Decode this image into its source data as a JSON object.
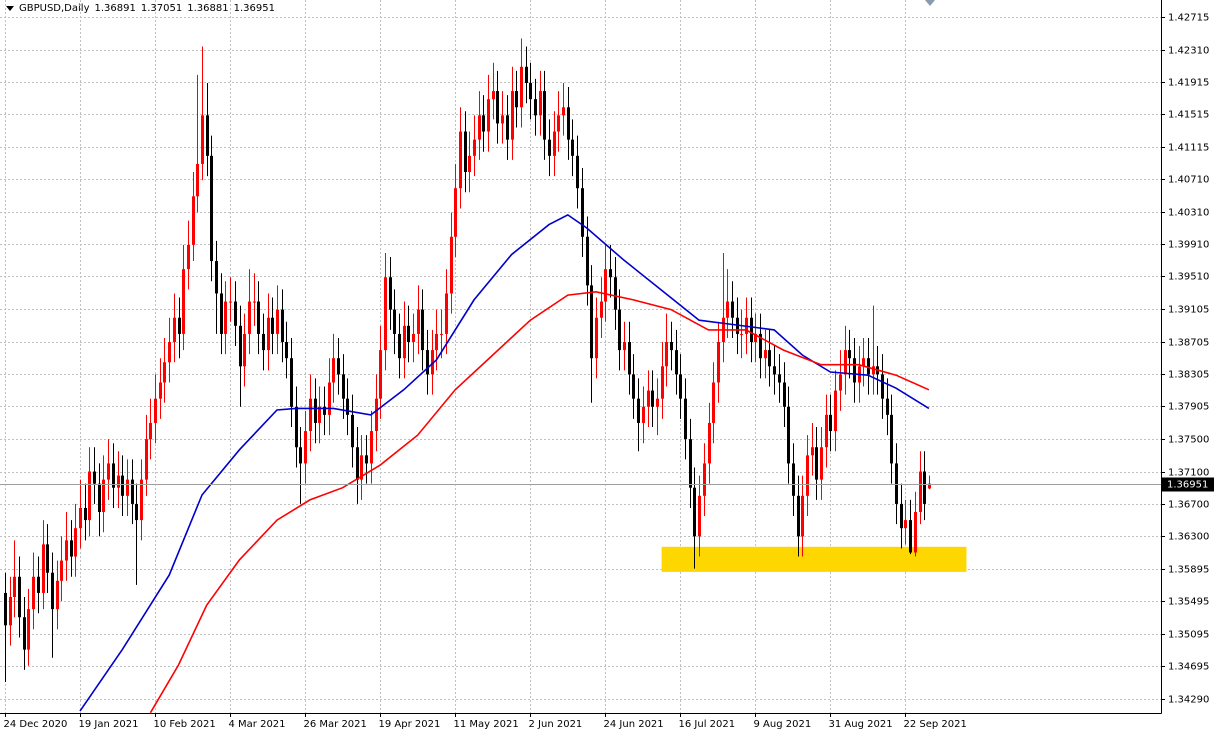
{
  "chart_data": {
    "type": "candlestick",
    "title": "GBPUSD,Daily",
    "up_color": "#ff0000",
    "down_color": "#000000",
    "grid": true,
    "ylim": [
      1.34117,
      1.42925
    ],
    "yticks": [
      {
        "value": 1.3429,
        "label": "1.34290"
      },
      1.34695,
      1.35095,
      1.35495,
      1.35895,
      {
        "value": 1.363,
        "label": "1.36300"
      },
      {
        "value": 1.367,
        "label": "1.36700"
      },
      {
        "value": 1.371,
        "label": "1.37100"
      },
      {
        "value": 1.375,
        "label": "1.37500"
      },
      1.37905,
      1.38305,
      1.38705,
      1.39105,
      {
        "value": 1.3951,
        "label": "1.39510"
      },
      {
        "value": 1.3991,
        "label": "1.39910"
      },
      {
        "value": 1.4031,
        "label": "1.40310"
      },
      {
        "value": 1.4071,
        "label": "1.40710"
      },
      1.41115,
      1.41515,
      1.41915,
      {
        "value": 1.4231,
        "label": "1.42310"
      },
      1.42715
    ],
    "categories": [
      "24 Dec 2020",
      null,
      null,
      null,
      null,
      null,
      null,
      null,
      null,
      null,
      null,
      null,
      null,
      null,
      null,
      null,
      "19 Jan 2021",
      null,
      null,
      null,
      null,
      null,
      null,
      null,
      null,
      null,
      null,
      null,
      null,
      null,
      null,
      null,
      "10 Feb 2021",
      null,
      null,
      null,
      null,
      null,
      null,
      null,
      null,
      null,
      null,
      null,
      null,
      null,
      null,
      null,
      "4 Mar 2021",
      null,
      null,
      null,
      null,
      null,
      null,
      null,
      null,
      null,
      null,
      null,
      null,
      null,
      null,
      null,
      "26 Mar 2021",
      null,
      null,
      null,
      null,
      null,
      null,
      null,
      null,
      null,
      null,
      null,
      null,
      null,
      null,
      null,
      "19 Apr 2021",
      null,
      null,
      null,
      null,
      null,
      null,
      null,
      null,
      null,
      null,
      null,
      null,
      null,
      null,
      null,
      "11 May 2021",
      null,
      null,
      null,
      null,
      null,
      null,
      null,
      null,
      null,
      null,
      null,
      null,
      null,
      null,
      null,
      "2 Jun 2021",
      null,
      null,
      null,
      null,
      null,
      null,
      null,
      null,
      null,
      null,
      null,
      null,
      null,
      null,
      null,
      "24 Jun 2021",
      null,
      null,
      null,
      null,
      null,
      null,
      null,
      null,
      null,
      null,
      null,
      null,
      null,
      null,
      null,
      "16 Jul 2021",
      null,
      null,
      null,
      null,
      null,
      null,
      null,
      null,
      null,
      null,
      null,
      null,
      null,
      null,
      null,
      "9 Aug 2021",
      null,
      null,
      null,
      null,
      null,
      null,
      null,
      null,
      null,
      null,
      null,
      null,
      null,
      null,
      null,
      "31 Aug 2021",
      null,
      null,
      null,
      null,
      null,
      null,
      null,
      null,
      null,
      null,
      null,
      null,
      null,
      null,
      null,
      "22 Sep 2021",
      null,
      null,
      null,
      null,
      null
    ],
    "open": [
      1.356,
      1.352,
      1.3555,
      1.358,
      1.353,
      1.349,
      1.354,
      1.358,
      1.356,
      1.362,
      1.3585,
      1.354,
      1.3575,
      1.36,
      1.3625,
      1.3605,
      1.364,
      1.3665,
      1.365,
      1.371,
      1.3695,
      1.366,
      1.37,
      1.372,
      1.369,
      1.3705,
      1.368,
      1.37,
      1.367,
      1.365,
      1.37,
      1.375,
      1.377,
      1.38,
      1.382,
      1.3845,
      1.387,
      1.39,
      1.388,
      1.396,
      1.399,
      1.405,
      1.409,
      1.415,
      1.41,
      1.397,
      1.393,
      1.388,
      1.392,
      1.392,
      1.389,
      1.384,
      1.388,
      1.392,
      1.392,
      1.388,
      1.386,
      1.39,
      1.388,
      1.391,
      1.387,
      1.385,
      1.379,
      1.374,
      1.372,
      1.376,
      1.38,
      1.377,
      1.379,
      1.378,
      1.382,
      1.385,
      1.383,
      1.38,
      1.378,
      1.374,
      1.37,
      1.373,
      1.372,
      1.376,
      1.38,
      1.386,
      1.395,
      1.391,
      1.388,
      1.385,
      1.389,
      1.387,
      1.388,
      1.391,
      1.386,
      1.383,
      1.386,
      1.388,
      1.388,
      1.393,
      1.4,
      1.406,
      1.413,
      1.408,
      1.41,
      1.412,
      1.415,
      1.413,
      1.417,
      1.418,
      1.414,
      1.415,
      1.412,
      1.418,
      1.416,
      1.421,
      1.419,
      1.417,
      1.415,
      1.418,
      1.412,
      1.41,
      1.413,
      1.415,
      1.416,
      1.412,
      1.41,
      1.406,
      1.4,
      1.394,
      1.385,
      1.39,
      1.392,
      1.396,
      1.395,
      1.391,
      1.386,
      1.387,
      1.383,
      1.38,
      1.377,
      1.379,
      1.381,
      1.379,
      1.38,
      1.384,
      1.387,
      1.386,
      1.383,
      1.38,
      1.375,
      1.369,
      1.363,
      1.368,
      1.372,
      1.377,
      1.382,
      1.387,
      1.39,
      1.392,
      1.39,
      1.388,
      1.388,
      1.39,
      1.387,
      1.388,
      1.385,
      1.386,
      1.384,
      1.383,
      1.382,
      1.379,
      1.372,
      1.368,
      1.363,
      1.368,
      1.373,
      1.374,
      1.37,
      1.374,
      1.378,
      1.376,
      1.381,
      1.383,
      1.386,
      1.385,
      1.382,
      1.384,
      1.385,
      1.383,
      1.384,
      1.383,
      1.38,
      1.378,
      1.372,
      1.367,
      1.364,
      1.365,
      1.361,
      1.366,
      1.371,
      1.36891
    ],
    "high": [
      1.3585,
      1.358,
      1.3625,
      1.3605,
      1.3555,
      1.3565,
      1.361,
      1.3605,
      1.365,
      1.3645,
      1.361,
      1.36,
      1.363,
      1.366,
      1.365,
      1.367,
      1.37,
      1.3695,
      1.374,
      1.374,
      1.372,
      1.373,
      1.375,
      1.3745,
      1.3735,
      1.373,
      1.3725,
      1.3725,
      1.3695,
      1.3725,
      1.378,
      1.38,
      1.383,
      1.385,
      1.3875,
      1.39,
      1.393,
      1.3925,
      1.399,
      1.402,
      1.408,
      1.42,
      1.4235,
      1.419,
      1.4125,
      1.3995,
      1.3955,
      1.3945,
      1.395,
      1.3945,
      1.3915,
      1.3905,
      1.396,
      1.3955,
      1.3945,
      1.3905,
      1.393,
      1.3925,
      1.394,
      1.3935,
      1.3895,
      1.3875,
      1.3815,
      1.3765,
      1.3785,
      1.383,
      1.3825,
      1.3815,
      1.3815,
      1.385,
      1.388,
      1.3875,
      1.3855,
      1.3825,
      1.3805,
      1.3765,
      1.3755,
      1.3755,
      1.3785,
      1.383,
      1.389,
      1.398,
      1.3975,
      1.3935,
      1.3905,
      1.392,
      1.3915,
      1.3905,
      1.394,
      1.3935,
      1.3885,
      1.3885,
      1.391,
      1.391,
      1.396,
      1.403,
      1.409,
      1.416,
      1.4155,
      1.413,
      1.415,
      1.418,
      1.4175,
      1.42,
      1.4215,
      1.4205,
      1.418,
      1.4175,
      1.421,
      1.4205,
      1.4245,
      1.4235,
      1.4215,
      1.4195,
      1.4205,
      1.4205,
      1.4145,
      1.4155,
      1.418,
      1.419,
      1.4185,
      1.4145,
      1.4125,
      1.4085,
      1.4025,
      1.3965,
      1.3925,
      1.395,
      1.399,
      1.399,
      1.3975,
      1.3935,
      1.3895,
      1.3895,
      1.3855,
      1.3825,
      1.3815,
      1.3835,
      1.3835,
      1.3825,
      1.387,
      1.3905,
      1.3895,
      1.3885,
      1.3855,
      1.3825,
      1.3775,
      1.3715,
      1.3705,
      1.3745,
      1.3795,
      1.3845,
      1.3895,
      1.398,
      1.396,
      1.3945,
      1.3925,
      1.391,
      1.3925,
      1.3925,
      1.3905,
      1.3905,
      1.3885,
      1.3885,
      1.3865,
      1.3855,
      1.3845,
      1.3815,
      1.3745,
      1.3705,
      1.3705,
      1.3755,
      1.377,
      1.3765,
      1.3765,
      1.3805,
      1.3805,
      1.3835,
      1.386,
      1.389,
      1.3885,
      1.3875,
      1.3865,
      1.3875,
      1.3875,
      1.3915,
      1.3865,
      1.3855,
      1.3825,
      1.3805,
      1.3745,
      1.3695,
      1.3675,
      1.3675,
      1.3685,
      1.3735,
      1.3735,
      1.37051
    ],
    "low": [
      1.345,
      1.3495,
      1.353,
      1.3505,
      1.3465,
      1.347,
      1.3515,
      1.3535,
      1.354,
      1.356,
      1.348,
      1.3515,
      1.355,
      1.3575,
      1.358,
      1.358,
      1.3615,
      1.3625,
      1.363,
      1.367,
      1.363,
      1.3635,
      1.3675,
      1.3665,
      1.3665,
      1.3655,
      1.3655,
      1.3645,
      1.357,
      1.3625,
      1.368,
      1.3725,
      1.3745,
      1.3775,
      1.3795,
      1.382,
      1.3845,
      1.385,
      1.386,
      1.3935,
      1.397,
      1.403,
      1.407,
      1.4075,
      1.3945,
      1.388,
      1.3855,
      1.3855,
      1.3895,
      1.3865,
      1.379,
      1.3815,
      1.3855,
      1.389,
      1.3855,
      1.3835,
      1.3835,
      1.3855,
      1.3855,
      1.3845,
      1.3825,
      1.3765,
      1.3715,
      1.367,
      1.3695,
      1.3735,
      1.3745,
      1.3745,
      1.3755,
      1.3755,
      1.3795,
      1.3805,
      1.3775,
      1.3755,
      1.3715,
      1.367,
      1.3675,
      1.3695,
      1.3695,
      1.3735,
      1.3775,
      1.3835,
      1.3885,
      1.3855,
      1.3825,
      1.3825,
      1.3845,
      1.3845,
      1.3855,
      1.3835,
      1.3805,
      1.3805,
      1.3835,
      1.385,
      1.3855,
      1.3905,
      1.3975,
      1.4035,
      1.4055,
      1.4055,
      1.4075,
      1.4095,
      1.4105,
      1.4105,
      1.4145,
      1.4115,
      1.4115,
      1.4095,
      1.4095,
      1.4135,
      1.4135,
      1.4165,
      1.4145,
      1.4125,
      1.4125,
      1.4095,
      1.4075,
      1.4075,
      1.4105,
      1.4125,
      1.4095,
      1.4075,
      1.4035,
      1.3975,
      1.3915,
      1.3795,
      1.3825,
      1.3875,
      1.3895,
      1.3925,
      1.3885,
      1.3835,
      1.3835,
      1.3805,
      1.3775,
      1.3735,
      1.3745,
      1.3765,
      1.3765,
      1.3755,
      1.3775,
      1.3815,
      1.3835,
      1.3805,
      1.3775,
      1.3725,
      1.3665,
      1.359,
      1.3605,
      1.3655,
      1.3695,
      1.3745,
      1.3795,
      1.3845,
      1.3875,
      1.3875,
      1.3855,
      1.385,
      1.3855,
      1.3845,
      1.3845,
      1.3825,
      1.3825,
      1.3815,
      1.3805,
      1.3795,
      1.3765,
      1.3695,
      1.3655,
      1.3605,
      1.3605,
      1.3655,
      1.3705,
      1.3675,
      1.3675,
      1.3715,
      1.3735,
      1.3735,
      1.3785,
      1.3805,
      1.3825,
      1.3795,
      1.3795,
      1.3815,
      1.3805,
      1.3805,
      1.3805,
      1.3775,
      1.3755,
      1.3695,
      1.3645,
      1.3615,
      1.362,
      1.3608,
      1.3605,
      1.3645,
      1.365,
      1.36881
    ],
    "close": [
      1.352,
      1.3555,
      1.358,
      1.353,
      1.349,
      1.354,
      1.358,
      1.356,
      1.362,
      1.3585,
      1.354,
      1.3575,
      1.36,
      1.3625,
      1.3605,
      1.364,
      1.3665,
      1.365,
      1.371,
      1.3695,
      1.366,
      1.37,
      1.372,
      1.369,
      1.3705,
      1.368,
      1.37,
      1.367,
      1.365,
      1.37,
      1.375,
      1.377,
      1.38,
      1.382,
      1.3845,
      1.387,
      1.39,
      1.388,
      1.396,
      1.399,
      1.405,
      1.409,
      1.415,
      1.41,
      1.397,
      1.393,
      1.388,
      1.392,
      1.392,
      1.389,
      1.384,
      1.388,
      1.392,
      1.392,
      1.388,
      1.386,
      1.39,
      1.388,
      1.391,
      1.387,
      1.385,
      1.379,
      1.374,
      1.372,
      1.376,
      1.38,
      1.377,
      1.379,
      1.378,
      1.382,
      1.385,
      1.383,
      1.38,
      1.378,
      1.374,
      1.37,
      1.373,
      1.372,
      1.376,
      1.38,
      1.386,
      1.395,
      1.391,
      1.388,
      1.385,
      1.389,
      1.387,
      1.388,
      1.391,
      1.386,
      1.383,
      1.386,
      1.388,
      1.388,
      1.393,
      1.4,
      1.406,
      1.413,
      1.408,
      1.41,
      1.412,
      1.415,
      1.413,
      1.417,
      1.418,
      1.414,
      1.415,
      1.412,
      1.418,
      1.416,
      1.421,
      1.419,
      1.417,
      1.415,
      1.418,
      1.412,
      1.41,
      1.413,
      1.415,
      1.416,
      1.412,
      1.41,
      1.406,
      1.4,
      1.394,
      1.385,
      1.39,
      1.392,
      1.396,
      1.395,
      1.391,
      1.386,
      1.387,
      1.383,
      1.38,
      1.377,
      1.379,
      1.381,
      1.379,
      1.38,
      1.384,
      1.387,
      1.386,
      1.383,
      1.38,
      1.375,
      1.369,
      1.363,
      1.368,
      1.372,
      1.377,
      1.382,
      1.387,
      1.39,
      1.392,
      1.39,
      1.388,
      1.388,
      1.39,
      1.387,
      1.388,
      1.385,
      1.386,
      1.384,
      1.383,
      1.382,
      1.379,
      1.372,
      1.368,
      1.363,
      1.368,
      1.373,
      1.374,
      1.37,
      1.374,
      1.378,
      1.376,
      1.381,
      1.383,
      1.386,
      1.385,
      1.382,
      1.384,
      1.385,
      1.383,
      1.384,
      1.383,
      1.38,
      1.378,
      1.372,
      1.367,
      1.364,
      1.365,
      1.361,
      1.366,
      1.371,
      1.367,
      1.36951
    ],
    "series": [
      {
        "color": "#0000cc",
        "x": [
          16,
          25,
          35,
          42,
          50,
          58,
          62,
          70,
          78,
          85,
          92,
          100,
          108,
          116,
          120,
          124,
          132,
          140,
          148,
          156,
          164,
          170,
          176,
          184,
          190,
          197
        ],
        "values": [
          1.3414,
          1.349,
          1.3582,
          1.3681,
          1.3737,
          1.3786,
          1.3788,
          1.3788,
          1.378,
          1.3811,
          1.3848,
          1.3922,
          1.3978,
          1.4015,
          1.4027,
          1.4011,
          1.3971,
          1.3934,
          1.3897,
          1.3891,
          1.3885,
          1.3854,
          1.3833,
          1.3829,
          1.3813,
          1.3788
        ]
      },
      {
        "color": "#ff0000",
        "x": [
          31,
          37,
          43,
          50,
          58,
          65,
          72,
          80,
          88,
          96,
          104,
          112,
          120,
          126,
          134,
          142,
          150,
          158,
          166,
          174,
          182,
          190,
          197
        ],
        "values": [
          1.3412,
          1.3471,
          1.3545,
          1.3601,
          1.365,
          1.3675,
          1.369,
          1.3718,
          1.3755,
          1.3811,
          1.3854,
          1.3897,
          1.3928,
          1.3932,
          1.3922,
          1.391,
          1.3885,
          1.3885,
          1.386,
          1.3842,
          1.3842,
          1.3829,
          1.3811
        ]
      }
    ],
    "zone": {
      "x": [
        140,
        205
      ],
      "y": [
        1.3586,
        1.3617
      ],
      "color": "#ffd700"
    }
  }
}
